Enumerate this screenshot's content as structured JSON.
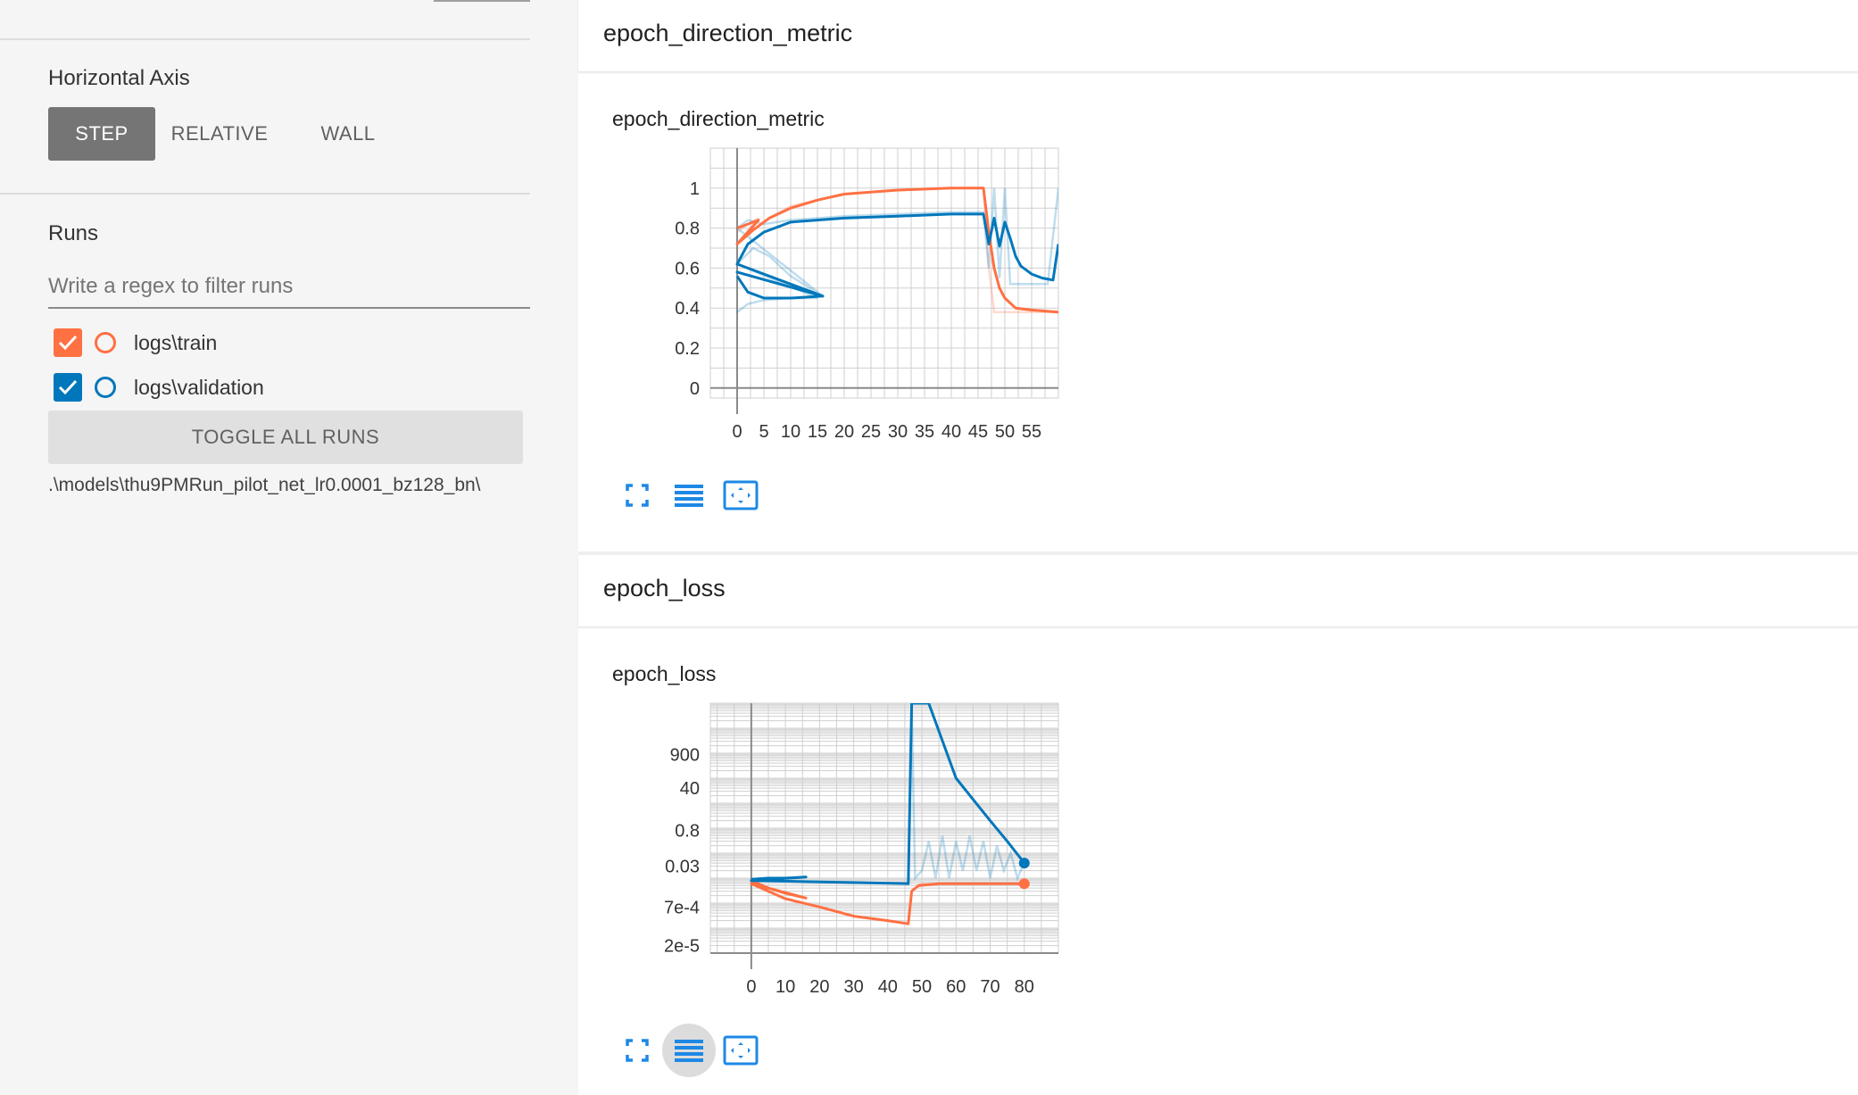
{
  "sidebar": {
    "horizontal_axis_label": "Horizontal Axis",
    "axis_options": [
      {
        "label": "STEP",
        "active": true
      },
      {
        "label": "RELATIVE",
        "active": false
      },
      {
        "label": "WALL",
        "active": false
      }
    ],
    "runs_label": "Runs",
    "filter_placeholder": "Write a regex to filter runs",
    "runs": [
      {
        "name": "logs\\train",
        "color": "#ff7043",
        "checked": true
      },
      {
        "name": "logs\\validation",
        "color": "#0077bb",
        "checked": true
      }
    ],
    "toggle_label": "TOGGLE ALL RUNS",
    "logdir": ".\\models\\thu9PMRun_pilot_net_lr0.0001_bz128_bn\\"
  },
  "cards": [
    {
      "header": "epoch_direction_metric"
    },
    {
      "header": "epoch_loss"
    }
  ],
  "icons": [
    "fullscreen-icon",
    "data-selection-icon",
    "fit-domain-icon"
  ],
  "chart_data": [
    {
      "type": "line",
      "title": "epoch_direction_metric",
      "xlim": [
        -5,
        60
      ],
      "ylim": [
        -0.05,
        1.2
      ],
      "xticks": [
        0,
        5,
        10,
        15,
        20,
        25,
        30,
        35,
        40,
        45,
        50,
        55
      ],
      "xtick_labels": [
        "0",
        "5",
        "10",
        "15",
        "20",
        "25",
        "30",
        "35",
        "40",
        "45",
        "50",
        "55"
      ],
      "yticks": [
        0,
        0.2,
        0.4,
        0.6,
        0.8,
        1
      ],
      "ytick_labels": [
        "0",
        "0.2",
        "0.4",
        "0.6",
        "0.8",
        "1"
      ],
      "series": [
        {
          "name": "logs\\train",
          "color": "#ff7043",
          "raw": [
            [
              0,
              0.78
            ],
            [
              2,
              0.82
            ],
            [
              4,
              0.85
            ],
            [
              0,
              0.72
            ],
            [
              3,
              0.79
            ],
            [
              6,
              0.85
            ],
            [
              10,
              0.91
            ],
            [
              15,
              0.94
            ],
            [
              20,
              0.97
            ],
            [
              30,
              0.99
            ],
            [
              40,
              1.0
            ],
            [
              46,
              1.0
            ],
            [
              47,
              0.6
            ],
            [
              48,
              0.38
            ],
            [
              50,
              0.38
            ],
            [
              55,
              0.38
            ],
            [
              60,
              0.38
            ]
          ],
          "smoothed": [
            [
              0,
              0.8
            ],
            [
              2,
              0.82
            ],
            [
              4,
              0.84
            ],
            [
              0,
              0.72
            ],
            [
              3,
              0.79
            ],
            [
              6,
              0.85
            ],
            [
              10,
              0.9
            ],
            [
              15,
              0.94
            ],
            [
              20,
              0.97
            ],
            [
              30,
              0.99
            ],
            [
              40,
              1.0
            ],
            [
              46,
              1.0
            ],
            [
              47,
              0.78
            ],
            [
              48,
              0.6
            ],
            [
              49,
              0.5
            ],
            [
              50,
              0.45
            ],
            [
              52,
              0.4
            ],
            [
              55,
              0.39
            ],
            [
              60,
              0.38
            ]
          ]
        },
        {
          "name": "logs\\validation",
          "color": "#0077bb",
          "raw": [
            [
              0,
              0.38
            ],
            [
              2,
              0.42
            ],
            [
              5,
              0.44
            ],
            [
              10,
              0.45
            ],
            [
              15,
              0.45
            ],
            [
              0,
              0.62
            ],
            [
              3,
              0.7
            ],
            [
              6,
              0.66
            ],
            [
              10,
              0.56
            ],
            [
              16,
              0.46
            ],
            [
              0,
              0.8
            ],
            [
              2,
              0.84
            ],
            [
              5,
              0.82
            ],
            [
              10,
              0.84
            ],
            [
              20,
              0.86
            ],
            [
              30,
              0.87
            ],
            [
              40,
              0.88
            ],
            [
              46,
              0.88
            ],
            [
              47,
              0.6
            ],
            [
              48,
              1.0
            ],
            [
              49,
              0.55
            ],
            [
              50,
              1.0
            ],
            [
              51,
              0.52
            ],
            [
              53,
              0.52
            ],
            [
              55,
              0.52
            ],
            [
              58,
              0.52
            ],
            [
              60,
              1.0
            ]
          ],
          "smoothed": [
            [
              0,
              0.56
            ],
            [
              2,
              0.48
            ],
            [
              5,
              0.45
            ],
            [
              10,
              0.45
            ],
            [
              16,
              0.46
            ],
            [
              0,
              0.58
            ],
            [
              16,
              0.46
            ],
            [
              0,
              0.62
            ],
            [
              2,
              0.72
            ],
            [
              5,
              0.78
            ],
            [
              10,
              0.83
            ],
            [
              20,
              0.85
            ],
            [
              30,
              0.86
            ],
            [
              40,
              0.87
            ],
            [
              46,
              0.87
            ],
            [
              47,
              0.72
            ],
            [
              48,
              0.85
            ],
            [
              49,
              0.71
            ],
            [
              50,
              0.83
            ],
            [
              51,
              0.75
            ],
            [
              52,
              0.66
            ],
            [
              53,
              0.61
            ],
            [
              55,
              0.57
            ],
            [
              57,
              0.55
            ],
            [
              59,
              0.54
            ],
            [
              60,
              0.72
            ]
          ]
        }
      ]
    },
    {
      "type": "line",
      "title": "epoch_loss",
      "yscale": "log",
      "xlim": [
        -12,
        90
      ],
      "ylim": [
        1e-05,
        100000
      ],
      "xticks": [
        0,
        10,
        20,
        30,
        40,
        50,
        60,
        70,
        80
      ],
      "xtick_labels": [
        "0",
        "10",
        "20",
        "30",
        "40",
        "50",
        "60",
        "70",
        "80"
      ],
      "ytick_values": [
        2e-05,
        0.0007,
        0.03,
        0.8,
        40,
        900
      ],
      "ytick_labels": [
        "2e-5",
        "7e-4",
        "0.03",
        "0.8",
        "40",
        "900"
      ],
      "series": [
        {
          "name": "logs\\train",
          "color": "#ff7043",
          "raw": [
            [
              0,
              0.008
            ],
            [
              5,
              0.004
            ],
            [
              10,
              0.0025
            ],
            [
              16,
              0.0016
            ],
            [
              0,
              0.006
            ],
            [
              10,
              0.0015
            ],
            [
              20,
              0.0007
            ],
            [
              30,
              0.0003
            ],
            [
              40,
              0.0002
            ],
            [
              46,
              0.00015
            ],
            [
              47,
              0.003
            ],
            [
              50,
              0.006
            ],
            [
              60,
              0.006
            ],
            [
              70,
              0.006
            ],
            [
              80,
              0.006
            ]
          ],
          "smoothed": [
            [
              0,
              0.008
            ],
            [
              5,
              0.004
            ],
            [
              10,
              0.0025
            ],
            [
              16,
              0.0016
            ],
            [
              0,
              0.006
            ],
            [
              10,
              0.0015
            ],
            [
              20,
              0.0007
            ],
            [
              30,
              0.0003
            ],
            [
              40,
              0.0002
            ],
            [
              46,
              0.00015
            ],
            [
              47,
              0.003
            ],
            [
              49,
              0.005
            ],
            [
              55,
              0.006
            ],
            [
              70,
              0.006
            ],
            [
              80,
              0.006
            ]
          ]
        },
        {
          "name": "logs\\validation",
          "color": "#0077bb",
          "raw": [
            [
              0,
              0.009
            ],
            [
              5,
              0.01
            ],
            [
              10,
              0.01
            ],
            [
              16,
              0.011
            ],
            [
              0,
              0.008
            ],
            [
              46,
              0.006
            ],
            [
              47,
              100000
            ],
            [
              48,
              0.01
            ],
            [
              50,
              0.02
            ],
            [
              52,
              0.3
            ],
            [
              54,
              0.01
            ],
            [
              56,
              0.5
            ],
            [
              58,
              0.01
            ],
            [
              60,
              0.3
            ],
            [
              62,
              0.02
            ],
            [
              64,
              0.5
            ],
            [
              66,
              0.02
            ],
            [
              68,
              0.3
            ],
            [
              70,
              0.01
            ],
            [
              72,
              0.2
            ],
            [
              74,
              0.02
            ],
            [
              76,
              0.1
            ],
            [
              78,
              0.01
            ],
            [
              80,
              0.04
            ]
          ],
          "smoothed": [
            [
              0,
              0.009
            ],
            [
              5,
              0.01
            ],
            [
              10,
              0.01
            ],
            [
              16,
              0.011
            ],
            [
              0,
              0.008
            ],
            [
              46,
              0.006
            ],
            [
              47,
              100000
            ],
            [
              52,
              100000
            ],
            [
              60,
              100
            ],
            [
              70,
              2
            ],
            [
              75,
              0.3
            ],
            [
              80,
              0.04
            ]
          ]
        }
      ]
    }
  ]
}
